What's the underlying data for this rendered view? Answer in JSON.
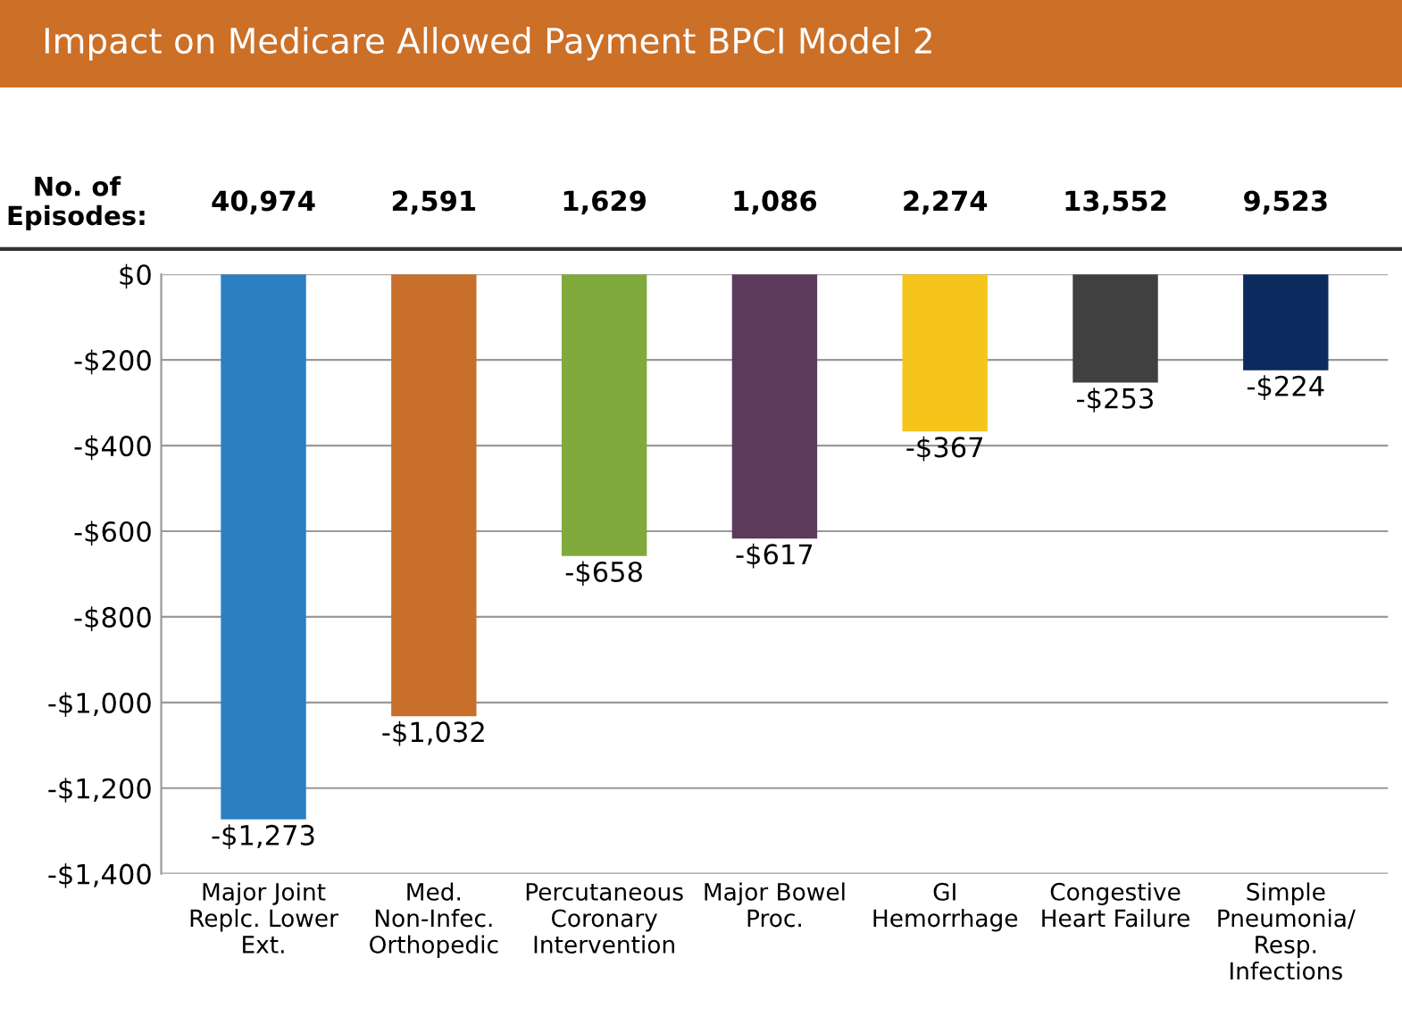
{
  "chart_data": {
    "type": "bar",
    "title": "Impact on Medicare Allowed Payment BPCI Model 2",
    "categories": [
      "Major Joint\nReplc. Lower\nExt.",
      "Med.\nNon-Infec.\nOrthopedic",
      "Percutaneous\nCoronary\nIntervention",
      "Major Bowel\nProc.",
      "GI\nHemorrhage",
      "Congestive\nHeart Failure",
      "Simple\nPneumonia/\nResp.\nInfections"
    ],
    "values": [
      -1273,
      -1032,
      -658,
      -617,
      -367,
      -253,
      -224
    ],
    "colors": [
      "#2b7fc2",
      "#c8702b",
      "#80aa3c",
      "#5b3a5c",
      "#f6c51b",
      "#404040",
      "#0d2a5e"
    ],
    "value_labels": [
      "-$1,273",
      "-$1,032",
      "-$658",
      "-$617",
      "-$367",
      "-$253",
      "-$224"
    ],
    "ylim": [
      -1400,
      0
    ],
    "yticks": [
      {
        "value": 0,
        "label": "$0"
      },
      {
        "value": -200,
        "label": "-$200"
      },
      {
        "value": -400,
        "label": "-$400"
      },
      {
        "value": -600,
        "label": "-$600"
      },
      {
        "value": -800,
        "label": "-$800"
      },
      {
        "value": -1000,
        "label": "-$1,000"
      },
      {
        "value": -1200,
        "label": "-$1,200"
      },
      {
        "value": -1400,
        "label": "-$1,400"
      }
    ],
    "grid": "y",
    "annotations": [
      "No. of\nEpisodes:",
      "40,974",
      "2,591",
      "1,629",
      "1,086",
      "2,274",
      "13,552",
      "9,523"
    ]
  }
}
